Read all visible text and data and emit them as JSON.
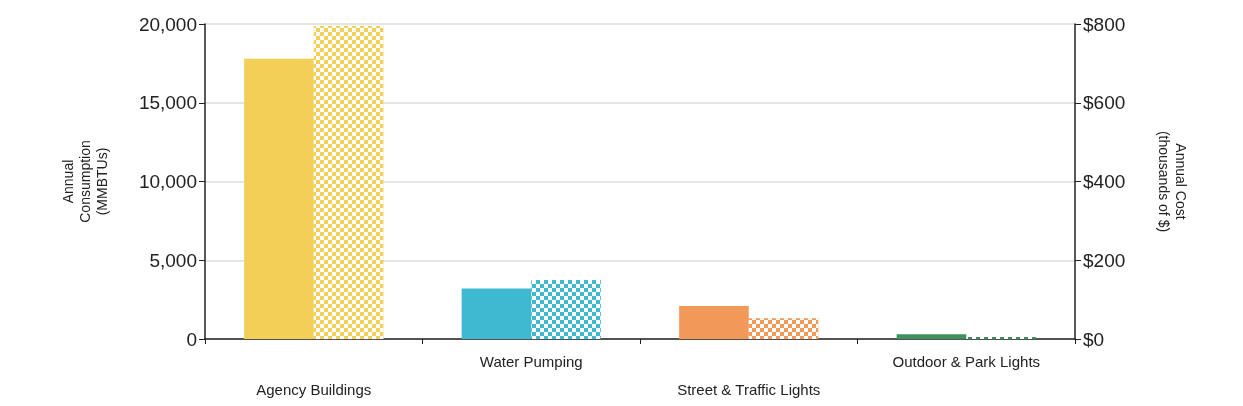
{
  "chart_data": {
    "type": "bar",
    "ylabel": "Annual\nConsumption\n(MMBTUs)",
    "y2label": "Annual Cost\n(thousands of $)",
    "categories": [
      "Agency Buildings",
      "Water Pumping",
      "Street & Traffic Lights",
      "Outdoor & Park Lights"
    ],
    "series": [
      {
        "colors": [
          "#f3cf58",
          "#3fb9d2",
          "#f29858",
          "#3f8f5f"
        ],
        "values": [
          17800,
          3200,
          2100,
          300
        ]
      },
      {
        "axis": "y2",
        "colors": [
          "#f3cf58",
          "#3fb9d2",
          "#f29858",
          "#3f8f5f"
        ],
        "values": [
          795,
          150,
          53,
          5
        ]
      }
    ],
    "ylim": [
      0,
      20000
    ],
    "yticks": [
      0,
      {
        "value": 5000,
        "label": "5,000"
      },
      {
        "value": 10000,
        "label": "10,000"
      },
      {
        "value": 15000,
        "label": "15,000"
      },
      {
        "value": 20000,
        "label": "20,000"
      }
    ],
    "y2lim": [
      0,
      800
    ],
    "y2ticks": [
      {
        "value": 0,
        "label": "$0"
      },
      {
        "value": 200,
        "label": "$200"
      },
      {
        "value": 400,
        "label": "$400"
      },
      {
        "value": 600,
        "label": "$600"
      },
      {
        "value": 800,
        "label": "$800"
      }
    ],
    "grid": "y"
  }
}
